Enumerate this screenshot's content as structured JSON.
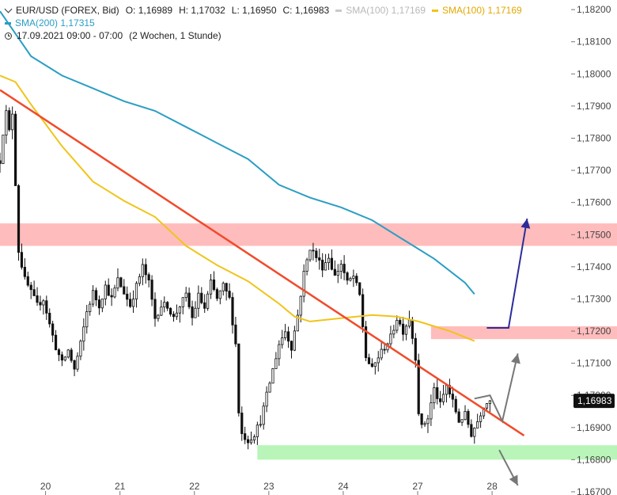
{
  "header": {
    "symbol": "EUR/USD (FOREX, Bid)",
    "open": "O: 1,16989",
    "high": "H: 1,17032",
    "low": "L: 1,16950",
    "close": "C: 1,16983",
    "sma100_gray": "SMA(100)  1,17169",
    "sma100": "SMA(100)  1,17169",
    "sma200": "SMA(200)  1,17315",
    "datetime": "17.09.2021 09:00 - 07:00",
    "range": "(2 Wochen, 1 Stunde)"
  },
  "colors": {
    "sma100": "#f0c419",
    "sma200": "#2a9ec4",
    "trendline": "#f04b2b",
    "candle": "#111111",
    "resistance_zone": "#ffbcbc",
    "support_zone": "#b9f5b9",
    "arrow_up": "#2c2c9a",
    "arrow_gray": "#777777",
    "price_tag": "#111111"
  },
  "chart_data": {
    "type": "candlestick",
    "title": "EUR/USD (FOREX, Bid)",
    "timeframe": "1 Stunde",
    "x_ticks": [
      "20",
      "21",
      "22",
      "23",
      "24",
      "27",
      "28"
    ],
    "y_ticks": [
      "1,18200",
      "1,18100",
      "1,18000",
      "1,17900",
      "1,17800",
      "1,17700",
      "1,17600",
      "1,17500",
      "1,17400",
      "1,17300",
      "1,17200",
      "1,17100",
      "1,17000",
      "1,16900",
      "1,16800",
      "1,16700"
    ],
    "y_tick_values": [
      1.182,
      1.181,
      1.18,
      1.179,
      1.178,
      1.177,
      1.176,
      1.175,
      1.174,
      1.173,
      1.172,
      1.171,
      1.17,
      1.169,
      1.168,
      1.167
    ],
    "ylim": [
      1.16695,
      1.18225
    ],
    "day_index": {
      "20": 5,
      "21": 29,
      "22": 53,
      "23": 77,
      "24": 101,
      "27": 125,
      "28": 149
    },
    "candle_count": 163,
    "current_price": "1,16983",
    "current_value": 1.16983,
    "price_path": [
      [
        0,
        1.1773
      ],
      [
        1,
        1.1782
      ],
      [
        2,
        1.1788
      ],
      [
        3,
        1.1782
      ],
      [
        4,
        1.1788
      ],
      [
        5,
        1.1766
      ],
      [
        6,
        1.1745
      ],
      [
        8,
        1.1736
      ],
      [
        10,
        1.1732
      ],
      [
        12,
        1.1728
      ],
      [
        14,
        1.173
      ],
      [
        16,
        1.1722
      ],
      [
        18,
        1.1715
      ],
      [
        20,
        1.171
      ],
      [
        22,
        1.1714
      ],
      [
        24,
        1.1708
      ],
      [
        26,
        1.1716
      ],
      [
        28,
        1.1726
      ],
      [
        30,
        1.1732
      ],
      [
        32,
        1.1728
      ],
      [
        34,
        1.1734
      ],
      [
        36,
        1.173
      ],
      [
        38,
        1.1736
      ],
      [
        40,
        1.1732
      ],
      [
        42,
        1.1728
      ],
      [
        44,
        1.1734
      ],
      [
        46,
        1.174
      ],
      [
        48,
        1.1735
      ],
      [
        50,
        1.1724
      ],
      [
        52,
        1.1728
      ],
      [
        54,
        1.1728
      ],
      [
        56,
        1.1724
      ],
      [
        58,
        1.1728
      ],
      [
        60,
        1.1731
      ],
      [
        62,
        1.1724
      ],
      [
        64,
        1.1731
      ],
      [
        66,
        1.1727
      ],
      [
        68,
        1.1735
      ],
      [
        70,
        1.173
      ],
      [
        72,
        1.1734
      ],
      [
        74,
        1.173
      ],
      [
        76,
        1.1716
      ],
      [
        77,
        1.1695
      ],
      [
        78,
        1.1688
      ],
      [
        80,
        1.1686
      ],
      [
        82,
        1.1688
      ],
      [
        84,
        1.1692
      ],
      [
        86,
        1.17
      ],
      [
        88,
        1.1708
      ],
      [
        90,
        1.1716
      ],
      [
        92,
        1.172
      ],
      [
        94,
        1.1715
      ],
      [
        96,
        1.1725
      ],
      [
        98,
        1.1738
      ],
      [
        100,
        1.1746
      ],
      [
        102,
        1.1743
      ],
      [
        104,
        1.174
      ],
      [
        106,
        1.1743
      ],
      [
        108,
        1.1737
      ],
      [
        110,
        1.1741
      ],
      [
        112,
        1.1735
      ],
      [
        114,
        1.1737
      ],
      [
        116,
        1.1731
      ],
      [
        118,
        1.1712
      ],
      [
        120,
        1.1708
      ],
      [
        122,
        1.1712
      ],
      [
        124,
        1.1715
      ],
      [
        126,
        1.1718
      ],
      [
        128,
        1.1724
      ],
      [
        130,
        1.172
      ],
      [
        132,
        1.1724
      ],
      [
        134,
        1.1712
      ],
      [
        135,
        1.1695
      ],
      [
        136,
        1.169
      ],
      [
        138,
        1.1693
      ],
      [
        140,
        1.1702
      ],
      [
        142,
        1.1697
      ],
      [
        144,
        1.1703
      ],
      [
        146,
        1.1698
      ],
      [
        148,
        1.1692
      ],
      [
        150,
        1.1694
      ],
      [
        152,
        1.1688
      ],
      [
        154,
        1.1692
      ],
      [
        156,
        1.1697
      ],
      [
        158,
        1.16983
      ]
    ],
    "series": [
      {
        "name": "SMA(200)",
        "values": [
          [
            0,
            1.18195
          ],
          [
            10,
            1.18055
          ],
          [
            20,
            1.17995
          ],
          [
            30,
            1.17955
          ],
          [
            40,
            1.17915
          ],
          [
            50,
            1.17885
          ],
          [
            60,
            1.17835
          ],
          [
            70,
            1.17785
          ],
          [
            80,
            1.17735
          ],
          [
            90,
            1.17655
          ],
          [
            100,
            1.17615
          ],
          [
            110,
            1.17585
          ],
          [
            120,
            1.17545
          ],
          [
            130,
            1.17485
          ],
          [
            140,
            1.17425
          ],
          [
            150,
            1.1735
          ],
          [
            153,
            1.17315
          ]
        ]
      },
      {
        "name": "SMA(100)",
        "values": [
          [
            0,
            1.17995
          ],
          [
            5,
            1.17975
          ],
          [
            10,
            1.17905
          ],
          [
            20,
            1.17775
          ],
          [
            30,
            1.17665
          ],
          [
            40,
            1.17605
          ],
          [
            50,
            1.17555
          ],
          [
            60,
            1.17465
          ],
          [
            70,
            1.17405
          ],
          [
            80,
            1.17355
          ],
          [
            90,
            1.17285
          ],
          [
            95,
            1.17245
          ],
          [
            100,
            1.1723
          ],
          [
            110,
            1.1724
          ],
          [
            120,
            1.1725
          ],
          [
            128,
            1.17245
          ],
          [
            135,
            1.1723
          ],
          [
            145,
            1.172
          ],
          [
            153,
            1.17169
          ]
        ]
      }
    ],
    "trendline": {
      "from": [
        0,
        1.1795
      ],
      "to": [
        169,
        1.16875
      ]
    },
    "resistance_zone_1": [
      1.17465,
      1.17535
    ],
    "resistance_zone_2": [
      1.17175,
      1.17215
    ],
    "support_zone": [
      1.168,
      1.16845
    ],
    "scenario_up": [
      [
        157,
        1.1721
      ],
      [
        164,
        1.1721
      ],
      [
        170,
        1.1755
      ]
    ],
    "scenario_down": [
      [
        153,
        1.1699
      ],
      [
        158,
        1.17
      ],
      [
        162,
        1.1692
      ],
      [
        167,
        1.1713
      ]
    ],
    "scenario_down_2": [
      [
        161,
        1.1683
      ],
      [
        167,
        1.1672
      ]
    ]
  }
}
